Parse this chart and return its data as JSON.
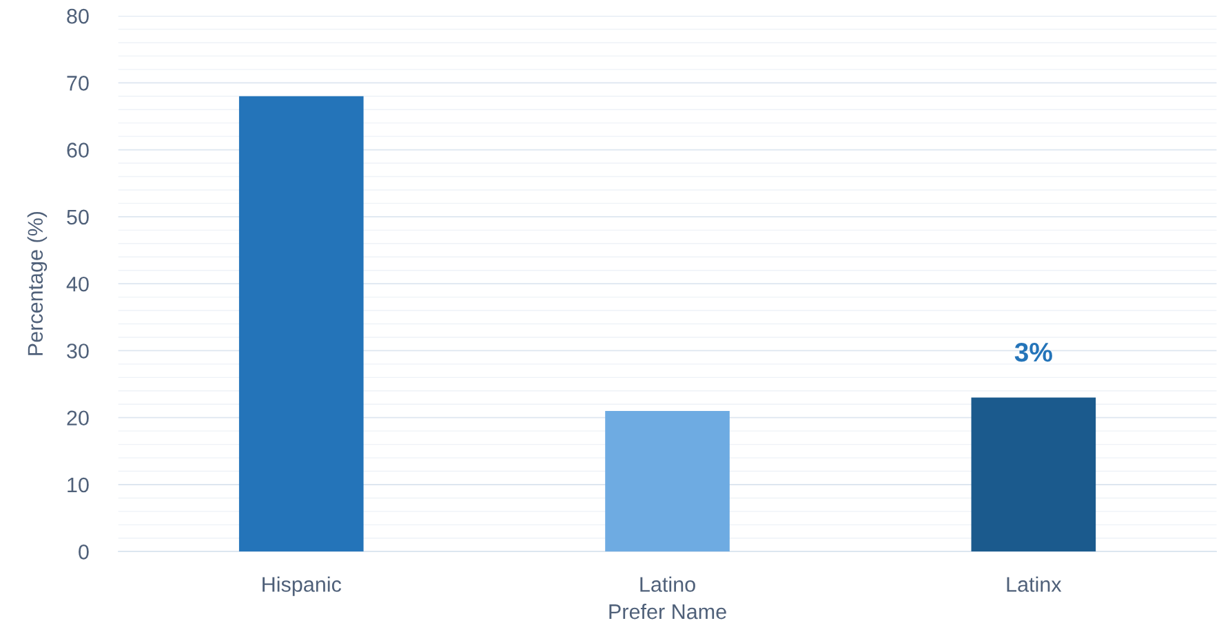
{
  "chart_data": {
    "type": "bar",
    "categories": [
      "Hispanic",
      "Latino",
      "Latinx"
    ],
    "values": [
      68,
      21,
      23
    ],
    "colors": [
      "#2474b9",
      "#6eabe2",
      "#1b5a8d"
    ],
    "xlabel": "Prefer Name",
    "ylabel": "Percentage (%)",
    "ylim": [
      0,
      80
    ],
    "yticks": [
      0,
      10,
      20,
      30,
      40,
      50,
      60,
      70,
      80
    ],
    "grid": "y",
    "annotations": [
      "3%"
    ]
  }
}
